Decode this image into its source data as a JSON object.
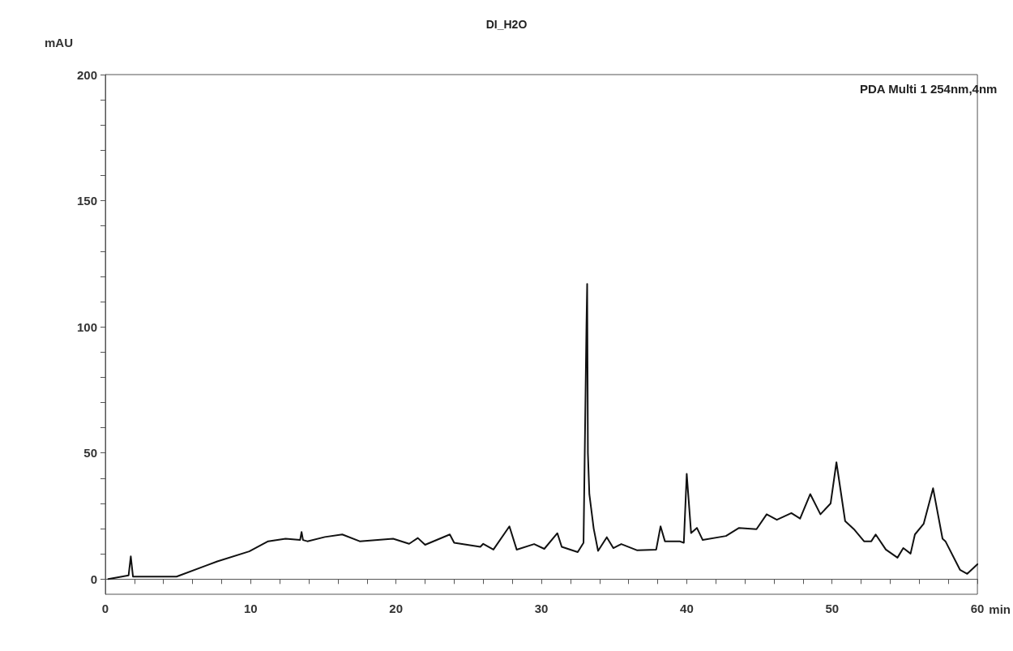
{
  "chart_data": {
    "type": "line",
    "title": "DI_H2O",
    "xlabel": "min",
    "ylabel": "mAU",
    "annotations": [
      "PDA Multi 1 254nm,4nm"
    ],
    "x": [
      0.2,
      1.6,
      1.75,
      1.9,
      3,
      4.9,
      7.7,
      9.9,
      11.2,
      12.4,
      13.4,
      13.5,
      13.6,
      13.9,
      15.1,
      16.3,
      17.5,
      19.8,
      20.9,
      21.5,
      22,
      23.7,
      24,
      25.8,
      26,
      26.7,
      27.8,
      28.3,
      29.5,
      30.2,
      31.1,
      31.4,
      32.5,
      32.9,
      33.1,
      33.15,
      33.2,
      33.3,
      33.6,
      33.9,
      34.5,
      34.95,
      35.5,
      36.6,
      37.9,
      38.2,
      38.5,
      39.5,
      39.8,
      40.0,
      40.3,
      40.7,
      41.1,
      42.7,
      43.6,
      44.8,
      45.5,
      46.2,
      47.2,
      47.8,
      48.5,
      49.2,
      49.9,
      50.3,
      50.9,
      51.5,
      52.2,
      52.7,
      53,
      53.7,
      54.5,
      54.9,
      55.4,
      55.7,
      56.3,
      56.95,
      57.6,
      57.8,
      58.8,
      59.3,
      60
    ],
    "series": [
      {
        "color": "#111111",
        "values": [
          0,
          1.5,
          9,
          1,
          1,
          1,
          7,
          11,
          15,
          16,
          15.5,
          18.7,
          15.5,
          15,
          16.7,
          17.7,
          15,
          16,
          14,
          16.3,
          13.6,
          17.7,
          14.4,
          12.8,
          14,
          11.7,
          20.9,
          11.7,
          13.9,
          12,
          18.2,
          12.8,
          10.7,
          14.4,
          100,
          117,
          50,
          33.7,
          20,
          11.2,
          16.6,
          12.3,
          13.9,
          11.4,
          11.7,
          20.9,
          15,
          15,
          14.4,
          41.7,
          18.3,
          20.3,
          15.5,
          17.1,
          20.3,
          19.8,
          25.7,
          23.5,
          26.2,
          24,
          33.7,
          25.7,
          30,
          46.3,
          23,
          19.8,
          15,
          15,
          17.7,
          11.7,
          8.5,
          12.3,
          10.1,
          17.7,
          21.9,
          36,
          16,
          15,
          3.7,
          2.1,
          5.9
        ]
      }
    ],
    "xlim": [
      0,
      60
    ],
    "ylim": [
      -6,
      200
    ],
    "xticks": [
      0,
      {
        "value": 2,
        "label": null
      },
      {
        "value": 4,
        "label": null
      },
      {
        "value": 6,
        "label": null
      },
      {
        "value": 8,
        "label": null
      },
      10,
      {
        "value": 12,
        "label": null
      },
      {
        "value": 14,
        "label": null
      },
      {
        "value": 16,
        "label": null
      },
      {
        "value": 18,
        "label": null
      },
      20,
      {
        "value": 22,
        "label": null
      },
      {
        "value": 24,
        "label": null
      },
      {
        "value": 26,
        "label": null
      },
      {
        "value": 28,
        "label": null
      },
      30,
      {
        "value": 32,
        "label": null
      },
      {
        "value": 34,
        "label": null
      },
      {
        "value": 36,
        "label": null
      },
      {
        "value": 38,
        "label": null
      },
      40,
      {
        "value": 42,
        "label": null
      },
      {
        "value": 44,
        "label": null
      },
      {
        "value": 46,
        "label": null
      },
      {
        "value": 48,
        "label": null
      },
      50,
      {
        "value": 52,
        "label": null
      },
      {
        "value": 54,
        "label": null
      },
      {
        "value": 56,
        "label": null
      },
      {
        "value": 58,
        "label": null
      },
      60
    ],
    "yticks": [
      0,
      {
        "value": 10,
        "label": null
      },
      {
        "value": 20,
        "label": null
      },
      {
        "value": 30,
        "label": null
      },
      {
        "value": 40,
        "label": null
      },
      50,
      {
        "value": 60,
        "label": null
      },
      {
        "value": 70,
        "label": null
      },
      {
        "value": 80,
        "label": null
      },
      {
        "value": 90,
        "label": null
      },
      100,
      {
        "value": 110,
        "label": null
      },
      {
        "value": 120,
        "label": null
      },
      {
        "value": 130,
        "label": null
      },
      {
        "value": 140,
        "label": null
      },
      150,
      {
        "value": 160,
        "label": null
      },
      {
        "value": 170,
        "label": null
      },
      {
        "value": 180,
        "label": null
      },
      {
        "value": 190,
        "label": null
      },
      200
    ],
    "marker": "none",
    "line_style": "solid"
  }
}
